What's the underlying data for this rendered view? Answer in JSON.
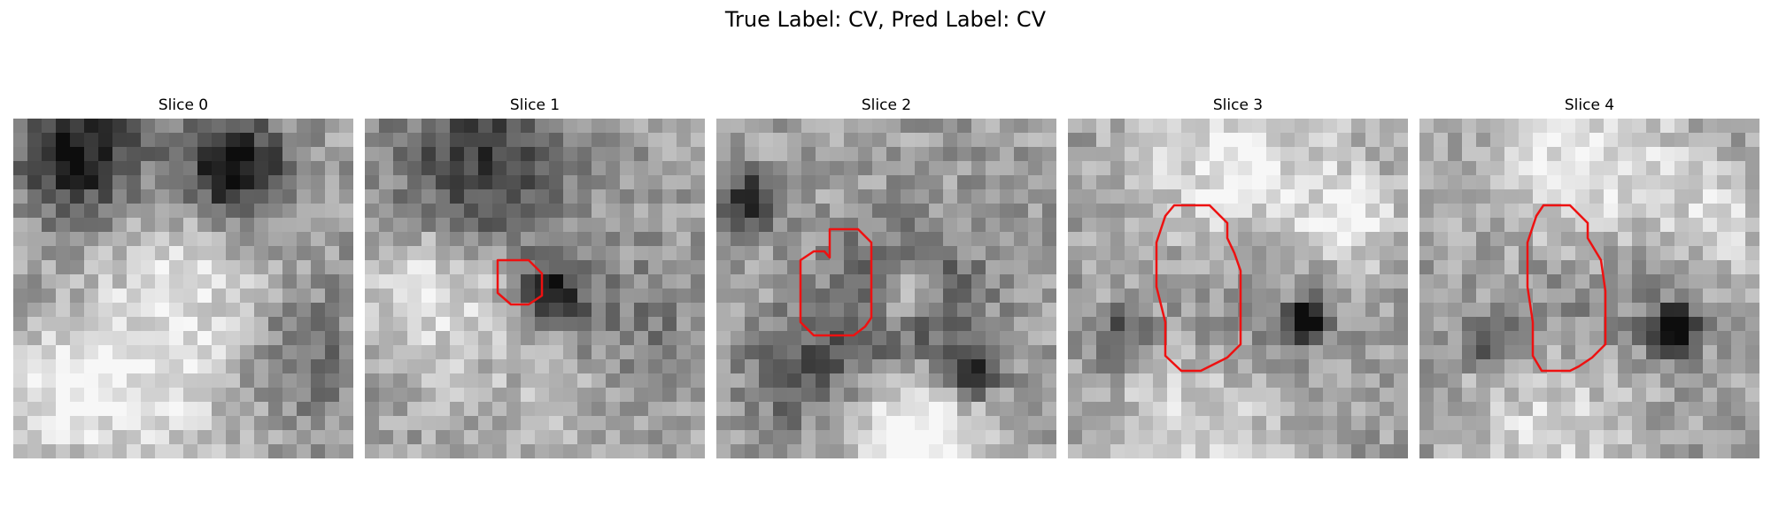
{
  "figure": {
    "suptitle": "True Label: CV, Pred Label: CV"
  },
  "slices": [
    {
      "title": "Slice 0",
      "has_contour": false
    },
    {
      "title": "Slice 1",
      "has_contour": true
    },
    {
      "title": "Slice 2",
      "has_contour": true
    },
    {
      "title": "Slice 3",
      "has_contour": true
    },
    {
      "title": "Slice 4",
      "has_contour": true
    }
  ],
  "colors": {
    "contour": "#ee1111"
  },
  "icons": []
}
